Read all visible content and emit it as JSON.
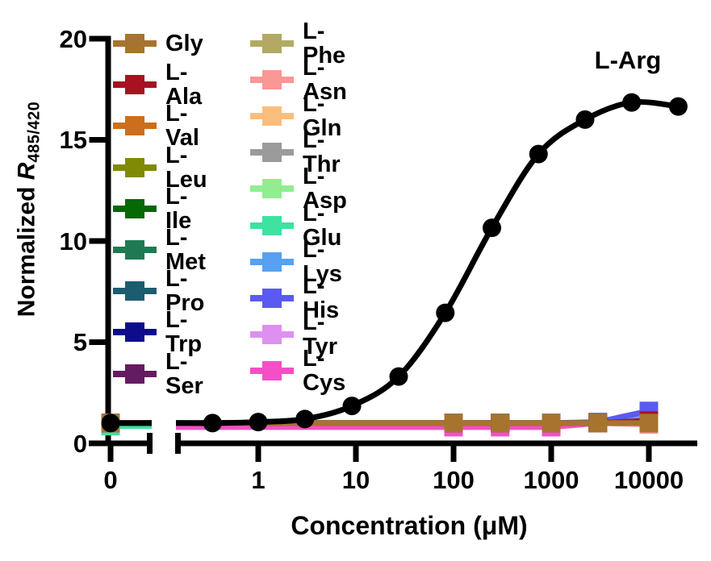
{
  "figure": {
    "annotation": "L-Arg",
    "xlabel": "Concentration (μM)",
    "ylabel": {
      "prefix": "Normalized ",
      "symbol": "R",
      "subscript": "485/420"
    },
    "x_tick_labels": [
      "0",
      "1",
      "10",
      "100",
      "1000",
      "10000"
    ],
    "y_tick_labels": [
      "0",
      "5",
      "10",
      "15",
      "20"
    ]
  },
  "legend": {
    "columns": [
      {
        "items": [
          {
            "label": "Gly",
            "color": "#A6742F"
          },
          {
            "label": "L-Ala",
            "color": "#A81120"
          },
          {
            "label": "L-Val",
            "color": "#CC6E1C"
          },
          {
            "label": "L-Leu",
            "color": "#808A05"
          },
          {
            "label": "L-Ile",
            "color": "#066806"
          },
          {
            "label": "L-Met",
            "color": "#1F7A52"
          },
          {
            "label": "L-Pro",
            "color": "#1D5C6E"
          },
          {
            "label": "L-Trp",
            "color": "#0D0D8C"
          },
          {
            "label": "L-Ser",
            "color": "#651B62"
          }
        ]
      },
      {
        "items": [
          {
            "label": "L-Phe",
            "color": "#B3A964"
          },
          {
            "label": "L-Asn",
            "color": "#F99795"
          },
          {
            "label": "L-Gln",
            "color": "#FBBE7D"
          },
          {
            "label": "L-Thr",
            "color": "#9B9B9B"
          },
          {
            "label": "L-Asp",
            "color": "#90EE90"
          },
          {
            "label": "L-Glu",
            "color": "#3EE2A1"
          },
          {
            "label": "L-Lys",
            "color": "#57A0F2"
          },
          {
            "label": "L-His",
            "color": "#5A5AF2"
          },
          {
            "label": "L-Tyr",
            "color": "#DE90F0"
          },
          {
            "label": "L-Cys",
            "color": "#F44FC7"
          }
        ]
      }
    ]
  },
  "chart_data": {
    "type": "line",
    "title": "",
    "xlabel": "Concentration (μM)",
    "ylabel": "Normalized R485/420",
    "xscale": "log10 with broken axis including 0",
    "ylim": [
      0,
      20
    ],
    "yticks": [
      0,
      5,
      10,
      15,
      20
    ],
    "xticks": [
      0,
      1,
      10,
      100,
      1000,
      10000
    ],
    "grid": false,
    "legend_position": "inside top-left, two columns",
    "annotation": {
      "text": "L-Arg",
      "near": "top right of curve"
    },
    "series": [
      {
        "name": "L-Thr",
        "color": "#9B9B9B",
        "marker": "square",
        "x": [
          0,
          100,
          300,
          1000,
          3000,
          10000
        ],
        "y": [
          1,
          1,
          1,
          1,
          1,
          1
        ]
      },
      {
        "name": "L-Ser",
        "color": "#651B62",
        "marker": "square",
        "x": [
          0,
          100,
          300,
          1000,
          3000,
          10000
        ],
        "y": [
          1,
          1,
          1,
          1,
          1,
          1
        ]
      },
      {
        "name": "L-Trp",
        "color": "#0D0D8C",
        "marker": "square",
        "x": [
          0,
          100,
          300,
          1000,
          3000,
          10000
        ],
        "y": [
          1,
          1,
          1,
          1,
          1,
          1
        ]
      },
      {
        "name": "L-Pro",
        "color": "#1D5C6E",
        "marker": "square",
        "x": [
          0,
          100,
          300,
          1000,
          3000,
          10000
        ],
        "y": [
          1,
          1,
          1,
          1,
          1,
          1
        ]
      },
      {
        "name": "L-Met",
        "color": "#1F7A52",
        "marker": "square",
        "x": [
          0,
          100,
          300,
          1000,
          3000,
          10000
        ],
        "y": [
          1,
          1,
          1,
          1,
          1,
          1
        ]
      },
      {
        "name": "L-Leu",
        "color": "#808A05",
        "marker": "square",
        "x": [
          0,
          100,
          300,
          1000,
          3000,
          10000
        ],
        "y": [
          1,
          1,
          1,
          1,
          1,
          1
        ]
      },
      {
        "name": "L-Val",
        "color": "#CC6E1C",
        "marker": "square",
        "x": [
          0,
          100,
          300,
          1000,
          3000,
          10000
        ],
        "y": [
          1,
          1,
          1,
          1,
          1,
          1
        ]
      },
      {
        "name": "L-Phe",
        "color": "#B3A964",
        "marker": "square",
        "x": [
          0,
          100,
          300,
          1000,
          3000,
          10000
        ],
        "y": [
          1,
          1,
          1,
          1,
          1,
          1
        ]
      },
      {
        "name": "L-Gln",
        "color": "#FBBE7D",
        "marker": "square",
        "x": [
          0,
          100,
          300,
          1000,
          3000,
          10000
        ],
        "y": [
          1,
          1,
          1,
          1,
          1,
          1
        ]
      },
      {
        "name": "L-Tyr",
        "color": "#DE90F0",
        "marker": "square",
        "x": [
          0,
          100,
          300,
          1000,
          3000,
          10000
        ],
        "y": [
          1,
          1,
          1,
          1,
          1,
          1
        ]
      },
      {
        "name": "L-Asp",
        "color": "#90EE90",
        "marker": "square",
        "x": [
          0,
          100,
          300,
          1000,
          3000,
          10000
        ],
        "y": [
          1,
          1,
          1,
          1,
          1,
          1
        ]
      },
      {
        "name": "L-Asn",
        "color": "#F99795",
        "marker": "square",
        "x": [
          0,
          100,
          300,
          1000,
          3000,
          10000
        ],
        "y": [
          1,
          1,
          1,
          1,
          1,
          0.93
        ]
      },
      {
        "name": "L-Ile",
        "color": "#066806",
        "marker": "square",
        "x": [
          0,
          100,
          300,
          1000,
          3000,
          10000
        ],
        "y": [
          1,
          1,
          1,
          0.88,
          1,
          1
        ]
      },
      {
        "name": "L-Glu",
        "color": "#3EE2A1",
        "marker": "square",
        "x": [
          0,
          100,
          300,
          1000,
          3000,
          10000
        ],
        "y": [
          0.85,
          1,
          1,
          1,
          1,
          1
        ]
      },
      {
        "name": "L-Cys",
        "color": "#F44FC7",
        "marker": "square",
        "x": [
          0,
          100,
          300,
          1000,
          3000,
          10000
        ],
        "y": [
          1,
          0.8,
          0.8,
          0.8,
          1,
          1
        ]
      },
      {
        "name": "L-Lys",
        "color": "#57A0F2",
        "marker": "square",
        "x": [
          0,
          100,
          300,
          1000,
          3000,
          10000
        ],
        "y": [
          1,
          1,
          1,
          1,
          1,
          1.4
        ]
      },
      {
        "name": "L-His",
        "color": "#5A5AF2",
        "marker": "square",
        "x": [
          0,
          100,
          300,
          1000,
          3000,
          10000
        ],
        "y": [
          1,
          1,
          1,
          1,
          1.05,
          1.6
        ]
      },
      {
        "name": "L-Ala",
        "color": "#A81120",
        "marker": "square",
        "x": [
          0,
          100,
          300,
          1000,
          3000,
          10000
        ],
        "y": [
          1,
          1,
          1,
          1,
          1,
          1.12
        ]
      },
      {
        "name": "Gly",
        "color": "#A6742F",
        "marker": "square",
        "x": [
          0,
          100,
          300,
          1000,
          3000,
          10000
        ],
        "y": [
          1,
          1,
          1,
          1,
          1,
          1
        ]
      },
      {
        "name": "L-Arg",
        "color": "#000000",
        "marker": "circle",
        "smooth": true,
        "x": [
          0,
          0.34,
          1,
          3,
          9.1,
          27.4,
          82.3,
          247,
          741,
          2222,
          6667,
          20000
        ],
        "y": [
          1.0,
          1.0,
          1.05,
          1.2,
          1.85,
          3.3,
          6.45,
          10.65,
          14.3,
          16.0,
          16.85,
          16.65
        ]
      }
    ]
  }
}
